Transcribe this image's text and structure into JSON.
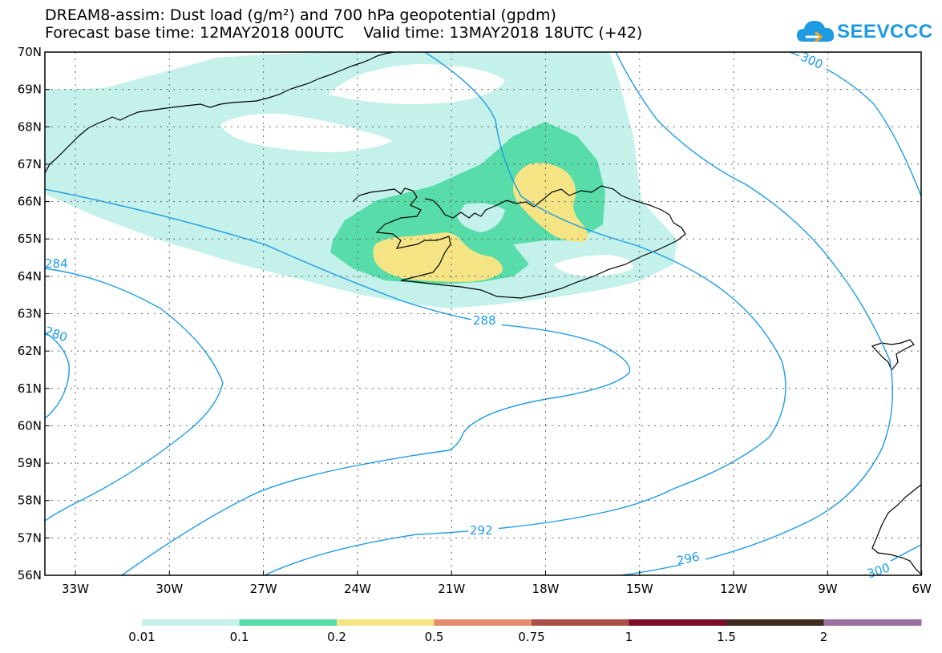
{
  "header": {
    "title_line1": "DREAM8-assim: Dust load (g/m²) and 700 hPa geopotential (gpdm)",
    "title_line2": "Forecast base time: 12MAY2018 00UTC    Valid time: 13MAY2018 18UTC (+42)",
    "logo_text": "SEEVCCC"
  },
  "map": {
    "region": "North Atlantic / Iceland",
    "lat_labels": [
      "70N",
      "69N",
      "68N",
      "67N",
      "66N",
      "65N",
      "64N",
      "63N",
      "62N",
      "61N",
      "60N",
      "59N",
      "58N",
      "57N",
      "56N"
    ],
    "lon_labels": [
      "33W",
      "30W",
      "27W",
      "24W",
      "21W",
      "18W",
      "15W",
      "12W",
      "9W",
      "6W"
    ],
    "contour_labels": {
      "c300_top": "300",
      "c284": "284",
      "c280": "280",
      "c288": "288",
      "c292": "292",
      "c296": "296",
      "c300_bottom": "300"
    },
    "dust_colors": {
      "low": "#c4f1ea",
      "mid": "#57dcaa",
      "high": "#f4e483"
    },
    "contour_color": "#1c9be8",
    "coastline_color": "#000000"
  },
  "legend": {
    "labels": [
      "0.01",
      "0.1",
      "0.2",
      "0.5",
      "0.75",
      "1",
      "1.5",
      "2"
    ],
    "colors": [
      "#c4f1ea",
      "#57dcaa",
      "#f4e483",
      "#e38b6b",
      "#a95346",
      "#7b0d2a",
      "#3f2a1e",
      "#9c6fa3"
    ]
  }
}
